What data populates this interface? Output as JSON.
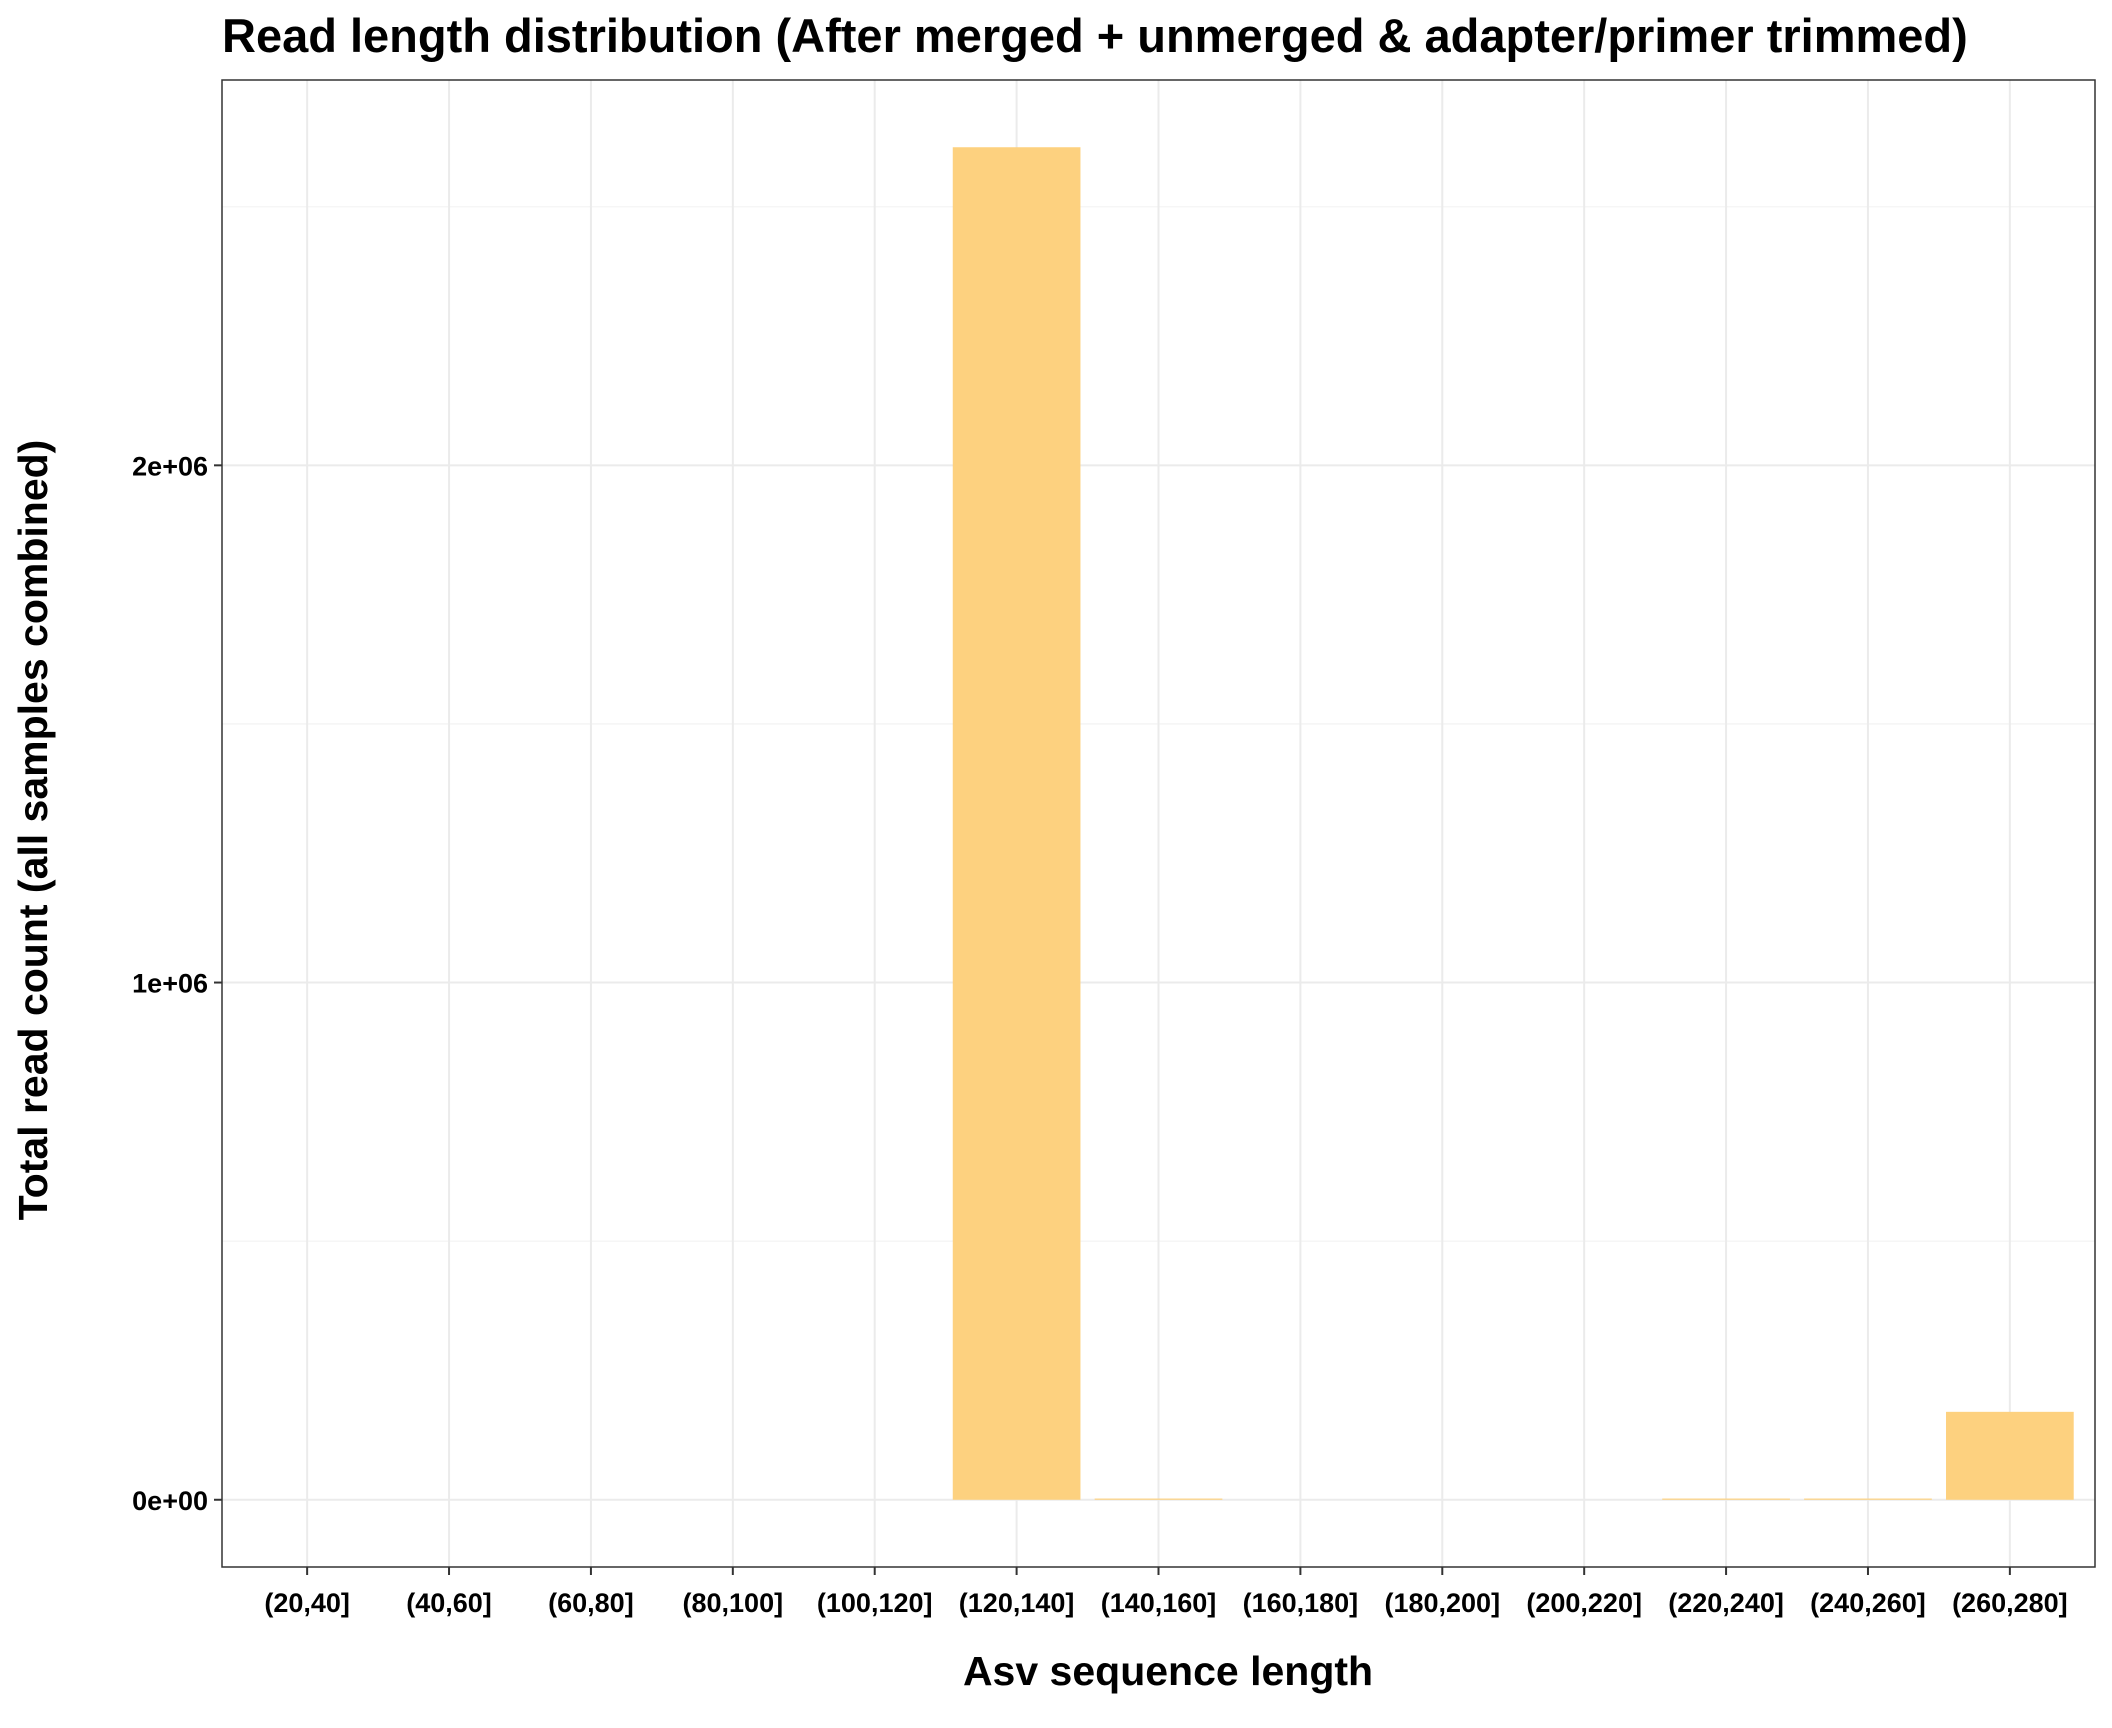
{
  "chart_data": {
    "type": "bar",
    "title": "Read length distribution (After merged + unmerged & adapter/primer trimmed)",
    "xlabel": "Asv sequence length",
    "ylabel": "Total read count (all samples combined)",
    "categories": [
      "(20,40]",
      "(40,60]",
      "(60,80]",
      "(80,100]",
      "(100,120]",
      "(120,140]",
      "(140,160]",
      "(160,180]",
      "(180,200]",
      "(200,220]",
      "(220,240]",
      "(240,260]",
      "(260,280]"
    ],
    "values": [
      0,
      0,
      0,
      0,
      0,
      2615000,
      2000,
      0,
      0,
      0,
      2000,
      2000,
      170000
    ],
    "ylim": [
      -130000,
      2745000
    ],
    "y_ticks": [
      0,
      1000000,
      2000000
    ],
    "y_tick_labels": [
      "0e+00",
      "1e+06",
      "2e+06"
    ],
    "grid": true,
    "legend": "none",
    "colors": {
      "bar": "#fdd17f",
      "grid_major": "#ebebeb",
      "grid_minor": "#f4f4f4",
      "panel_border": "#333333"
    }
  }
}
